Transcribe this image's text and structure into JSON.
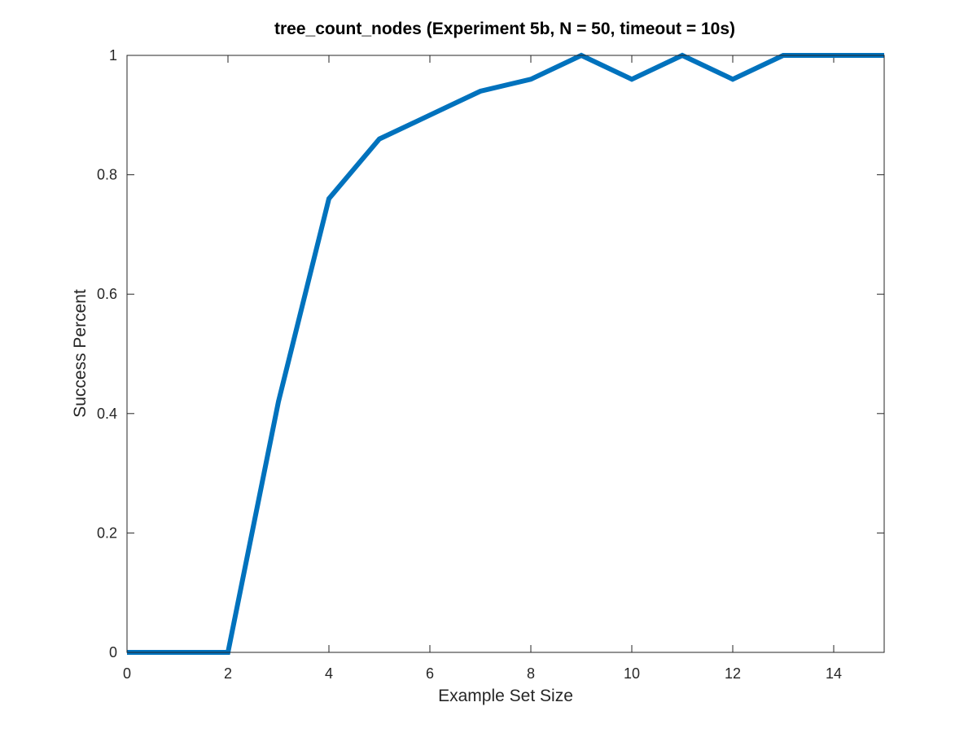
{
  "chart_data": {
    "type": "line",
    "title": "tree_count_nodes (Experiment 5b, N = 50, timeout = 10s)",
    "xlabel": "Example Set Size",
    "ylabel": "Success Percent",
    "xlim": [
      0,
      15
    ],
    "ylim": [
      0,
      1
    ],
    "xticks": [
      0,
      2,
      4,
      6,
      8,
      10,
      12,
      14
    ],
    "yticks": [
      0,
      0.2,
      0.4,
      0.6,
      0.8,
      1
    ],
    "xtick_labels": [
      "0",
      "2",
      "4",
      "6",
      "8",
      "10",
      "12",
      "14"
    ],
    "ytick_labels": [
      "0",
      "0.2",
      "0.4",
      "0.6",
      "0.8",
      "1"
    ],
    "grid": false,
    "box": true,
    "series": [
      {
        "color": "#0072BD",
        "x": [
          0,
          1,
          2,
          3,
          4,
          5,
          6,
          7,
          8,
          9,
          10,
          11,
          12,
          13,
          14,
          15
        ],
        "y": [
          0,
          0,
          0,
          0.42,
          0.76,
          0.86,
          0.9,
          0.94,
          0.96,
          1.0,
          0.96,
          1.0,
          0.96,
          1.0,
          1.0,
          1.0
        ]
      }
    ]
  }
}
